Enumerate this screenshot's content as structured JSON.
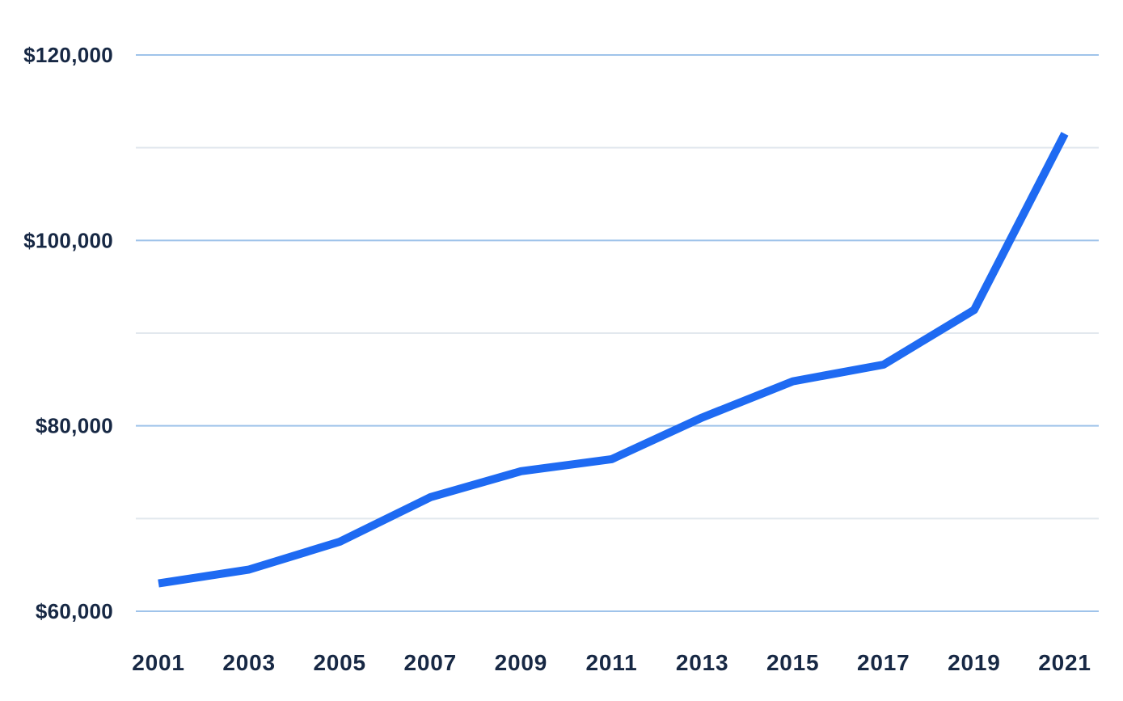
{
  "chart_data": {
    "type": "line",
    "title": "",
    "xlabel": "",
    "ylabel": "",
    "legend": "none",
    "grid": "horizontal-only",
    "categories": [
      "2001",
      "2003",
      "2005",
      "2007",
      "2009",
      "2011",
      "2013",
      "2015",
      "2017",
      "2019",
      "2021"
    ],
    "series": [
      {
        "name": "value-usd",
        "values": [
          63000,
          64500,
          67500,
          72300,
          75100,
          76400,
          80900,
          84800,
          86600,
          92500,
          111500
        ]
      }
    ],
    "ylim": [
      60000,
      120000
    ],
    "y_tick_step": 10000,
    "y_ticks": [
      {
        "value": 120000,
        "label": "$120,000",
        "major": true
      },
      {
        "value": 110000,
        "label": "",
        "major": false
      },
      {
        "value": 100000,
        "label": "$100,000",
        "major": true
      },
      {
        "value": 90000,
        "label": "",
        "major": false
      },
      {
        "value": 80000,
        "label": "$80,000",
        "major": true
      },
      {
        "value": 70000,
        "label": "",
        "major": false
      },
      {
        "value": 60000,
        "label": "$60,000",
        "major": true
      }
    ],
    "colors": {
      "line": "#1e6af2",
      "grid_major": "#9fc3ea",
      "grid_minor": "#e2e8ee",
      "text": "#172844",
      "background": "#ffffff"
    }
  }
}
